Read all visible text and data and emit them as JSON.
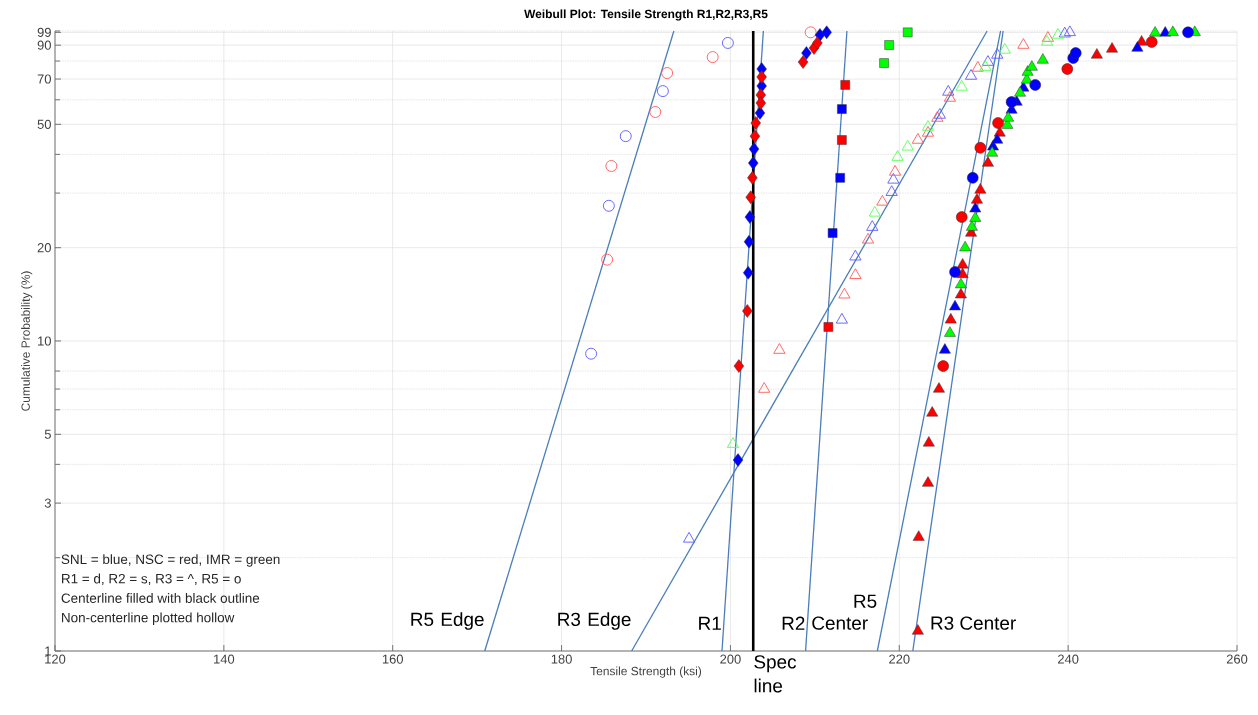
{
  "chart_data": {
    "type": "scatter",
    "title": "Weibull Plot: Tensile Strength R1,R2,R3,R5",
    "xlabel": "Tensile Strength (ksi)",
    "ylabel": "Cumulative Probability (%)",
    "xlim": [
      120,
      260
    ],
    "xticks": [
      120,
      140,
      160,
      180,
      200,
      220,
      240,
      260
    ],
    "ylim": [
      1,
      100
    ],
    "log": "y",
    "grid": true,
    "yticks": [
      1,
      {
        "value": 2,
        "label": null
      },
      3,
      {
        "value": 4,
        "label": null
      },
      5,
      {
        "value": 6,
        "label": null
      },
      {
        "value": 7,
        "label": null
      },
      {
        "value": 8,
        "label": null
      },
      10,
      20,
      {
        "value": 30,
        "label": null
      },
      {
        "value": 40,
        "label": null
      },
      50,
      {
        "value": 60,
        "label": null
      },
      70,
      {
        "value": 80,
        "label": null
      },
      90,
      99,
      {
        "value": 100,
        "label": null
      }
    ],
    "series": [
      {
        "type": "line",
        "name": "R5 Edge",
        "color": "#4a7ebb",
        "x": [
          170.9,
          193.3
        ],
        "values": [
          1,
          100
        ]
      },
      {
        "type": "line",
        "name": "R3 Edge",
        "color": "#4a7ebb",
        "x": [
          188.3,
          230.4
        ],
        "values": [
          1,
          100
        ]
      },
      {
        "type": "line",
        "name": "R1",
        "color": "#4a7ebb",
        "x": [
          199.0,
          203.9
        ],
        "values": [
          1,
          100
        ]
      },
      {
        "type": "line",
        "name": "R2",
        "color": "#4a7ebb",
        "x": [
          208.9,
          213.8
        ],
        "values": [
          1,
          100
        ]
      },
      {
        "type": "line",
        "name": "R5 Center",
        "color": "#4a7ebb",
        "x": [
          217.4,
          232.0
        ],
        "values": [
          1,
          100
        ]
      },
      {
        "type": "line",
        "name": "R3 Center",
        "color": "#4a7ebb",
        "x": [
          221.6,
          232.3
        ],
        "values": [
          1,
          100
        ]
      },
      {
        "marker": "circle",
        "color": "#5a5aff",
        "x": [
          199.7,
          192.0,
          187.6,
          185.6,
          183.5
        ],
        "values": [
          91.5,
          64.0,
          45.8,
          27.3,
          9.1
        ]
      },
      {
        "marker": "circle",
        "color": "#ff5a5a",
        "x": [
          209.5,
          197.9,
          192.5,
          191.1,
          185.9,
          185.4
        ],
        "values": [
          99,
          82.4,
          73.2,
          54.8,
          36.7,
          18.3
        ]
      },
      {
        "marker": "diamond",
        "color": "#0000ff",
        "x": [
          203.7,
          203.7,
          203.5,
          202.8,
          202.7,
          202.3,
          202.2,
          202.1,
          200.9,
          209.0,
          210.6,
          211.4
        ],
        "values": [
          75.4,
          66.5,
          54.4,
          41.6,
          37.5,
          25.1,
          20.9,
          16.6,
          4.13,
          84.9,
          97.1,
          99
        ]
      },
      {
        "marker": "diamond",
        "color": "#ff0000",
        "x": [
          203.7,
          203.6,
          203.6,
          203.0,
          202.9,
          202.6,
          202.4,
          202.0,
          201.0,
          208.6,
          209.9,
          210.3
        ],
        "values": [
          71.1,
          62.2,
          58.6,
          50.5,
          45.8,
          33.6,
          29.1,
          12.5,
          8.3,
          79.4,
          88.1,
          91.5
        ]
      },
      {
        "marker": "square",
        "color": "#0000ff",
        "x": [
          213.2,
          213.0,
          212.1
        ],
        "values": [
          56.0,
          33.6,
          22.3
        ]
      },
      {
        "marker": "square",
        "color": "#ff0000",
        "x": [
          213.6,
          213.2,
          211.6
        ],
        "values": [
          67.0,
          44.5,
          11.1
        ]
      },
      {
        "marker": "square",
        "color": "#00ff00",
        "x": [
          221.0,
          218.8,
          218.2
        ],
        "values": [
          99,
          90.1,
          78.8
        ]
      },
      {
        "marker": "triangle",
        "color": "#5a5aff",
        "x": [
          240.2,
          239.6,
          231.6,
          230.5,
          228.5,
          225.8,
          224.8,
          219.3,
          219.1,
          216.8,
          214.8,
          213.2,
          195.1
        ],
        "values": [
          99,
          98,
          83.7,
          79.4,
          71.6,
          63.6,
          53.6,
          33.1,
          30.2,
          23.3,
          18.7,
          11.7,
          2.3
        ]
      },
      {
        "marker": "triangle",
        "color": "#ff5a5a",
        "x": [
          237.6,
          234.7,
          229.3,
          226.0,
          224.5,
          223.4,
          222.2,
          219.5,
          218.0,
          216.3,
          214.8,
          213.5,
          205.8,
          204.0
        ],
        "values": [
          94.9,
          90.1,
          76.0,
          60.8,
          52.4,
          46.9,
          44.5,
          35.1,
          28.1,
          21.2,
          16.3,
          14.1,
          9.35,
          7.0
        ]
      },
      {
        "marker": "triangle",
        "color": "#5aff5a",
        "x": [
          238.8,
          237.5,
          232.5,
          230.2,
          227.4,
          223.4,
          221.0,
          219.8,
          217.1,
          200.3
        ],
        "values": [
          97.1,
          92.2,
          86.9,
          76.5,
          66.0,
          49.0,
          42.3,
          39.2,
          25.9,
          4.65
        ]
      },
      {
        "marker": "triangle",
        "color": "#ff0000",
        "x": [
          222.2,
          222.3,
          223.4,
          223.5,
          223.9,
          224.7,
          226.1,
          227.3,
          227.5,
          227.5,
          228.5,
          229.2,
          229.6,
          230.5,
          231.9,
          243.4,
          245.2,
          248.7
        ],
        "values": [
          1.16,
          2.33,
          3.48,
          4.69,
          5.86,
          7.0,
          11.7,
          14.1,
          16.4,
          17.6,
          22.3,
          28.5,
          30.7,
          37.5,
          46.9,
          83.7,
          87.5,
          92.2
        ]
      },
      {
        "marker": "triangle",
        "color": "#0000ff",
        "x": [
          225.4,
          226.6,
          229.0,
          231.1,
          231.6,
          233.3,
          233.9,
          234.7,
          248.2,
          251.5
        ],
        "values": [
          9.35,
          12.9,
          26.7,
          42.3,
          44.5,
          55.6,
          59.0,
          65.5,
          88.1,
          98.6
        ]
      },
      {
        "marker": "triangle",
        "color": "#00ff00",
        "x": [
          226.0,
          227.3,
          227.8,
          228.6,
          229.0,
          231.0,
          232.8,
          232.9,
          234.3,
          235.1,
          235.2,
          235.7,
          237.0,
          250.3,
          252.4,
          255.0
        ],
        "values": [
          10.6,
          15.2,
          20.0,
          23.3,
          24.9,
          40.4,
          49.7,
          52.4,
          63.1,
          69.5,
          73.7,
          76.5,
          80.6,
          98.6,
          99,
          99
        ]
      },
      {
        "marker": "circle",
        "color": "#0000ff",
        "x": [
          226.6,
          228.7,
          233.3,
          236.1,
          240.6,
          240.9,
          254.2
        ],
        "values": [
          16.7,
          33.6,
          59.0,
          67.0,
          81.8,
          84.9,
          99
        ]
      },
      {
        "marker": "circle",
        "color": "#ff0000",
        "x": [
          225.2,
          227.4,
          229.6,
          231.7,
          239.9,
          249.9
        ],
        "values": [
          8.3,
          25.1,
          42.0,
          50.5,
          75.4,
          92.2
        ]
      }
    ],
    "ref_lines": [
      {
        "axis": "x",
        "value": 202.7,
        "label": "Spec line",
        "color": "#000000"
      }
    ],
    "annotations": [
      "SNL = blue, NSC = red, IMR = green",
      "R1 = d, R2 = s, R3 = ^, R5 = o",
      "Centerline filled with black outline",
      "Non-centerline plotted hollow"
    ]
  }
}
